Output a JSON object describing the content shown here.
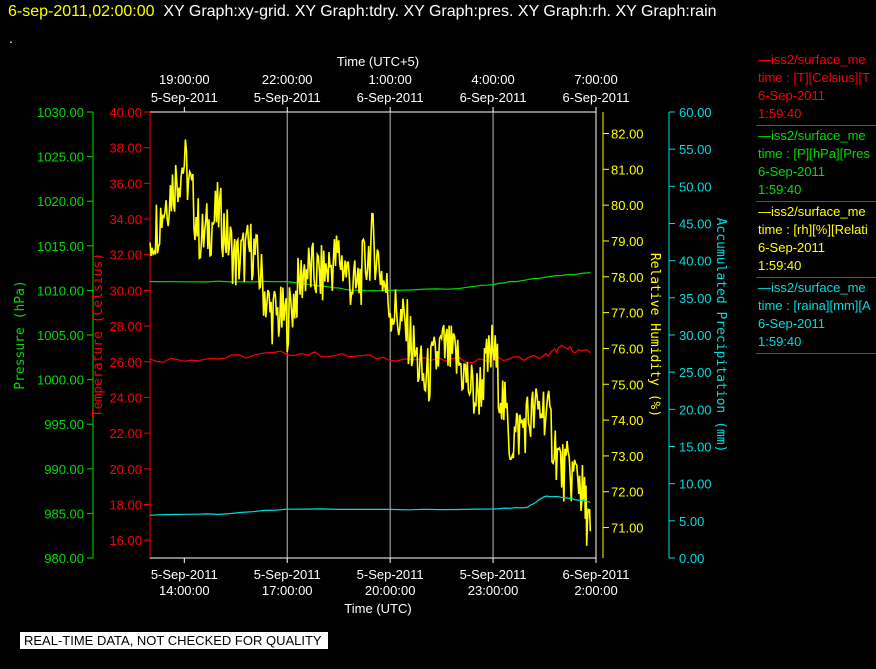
{
  "header": {
    "timestamp": "6-sep-2011,02:00:00",
    "graphs": "XY Graph:xy-grid.  XY Graph:tdry.  XY Graph:pres.  XY Graph:rh.  XY Graph:rain",
    "dot": "."
  },
  "legend": [
    {
      "title": "—iss2/surface_me",
      "line2": "time : [T][Celsius][T",
      "date": "6-Sep-2011",
      "time": "1:59:40",
      "color": "#ff0000"
    },
    {
      "title": "—iss2/surface_me",
      "line2": "time : [P][hPa][Pres",
      "date": "6-Sep-2011",
      "time": "1:59:40",
      "color": "#00dd00"
    },
    {
      "title": "—iss2/surface_me",
      "line2": "time : [rh][%][Relati",
      "date": "6-Sep-2011",
      "time": "1:59:40",
      "color": "#ffff00"
    },
    {
      "title": "—iss2/surface_me",
      "line2": "time : [raina][mm][A",
      "date": "6-Sep-2011",
      "time": "1:59:40",
      "color": "#00dddd"
    }
  ],
  "note": "REAL-TIME DATA, NOT CHECKED FOR QUALITY",
  "chart_data": {
    "type": "line",
    "x_top_label": "Time (UTC+5)",
    "x_bottom_label": "Time (UTC)",
    "x_range_hours_utc": [
      "5-Sep-2011 13:00:00",
      "6-Sep-2011 02:00:00"
    ],
    "top_ticks": [
      {
        "time": "19:00:00",
        "date": "5-Sep-2011"
      },
      {
        "time": "22:00:00",
        "date": "5-Sep-2011"
      },
      {
        "time": "1:00:00",
        "date": "6-Sep-2011"
      },
      {
        "time": "4:00:00",
        "date": "6-Sep-2011"
      },
      {
        "time": "7:00:00",
        "date": "6-Sep-2011"
      }
    ],
    "bottom_ticks": [
      {
        "date": "5-Sep-2011",
        "time": "14:00:00"
      },
      {
        "date": "5-Sep-2011",
        "time": "17:00:00"
      },
      {
        "date": "5-Sep-2011",
        "time": "20:00:00"
      },
      {
        "date": "5-Sep-2011",
        "time": "23:00:00"
      },
      {
        "date": "6-Sep-2011",
        "time": "2:00:00"
      }
    ],
    "grid": "vertical",
    "axes": {
      "pressure": {
        "label": "Pressure (hPa)",
        "range": [
          980,
          1030
        ],
        "ticks": [
          "980.00",
          "985.00",
          "990.00",
          "995.00",
          "1000.00",
          "1005.00",
          "1010.00",
          "1015.00",
          "1020.00",
          "1025.00",
          "1030.00"
        ],
        "color": "#00dd00"
      },
      "temperature": {
        "label": "Temperature (Celsius)",
        "range": [
          15,
          40
        ],
        "ticks": [
          "16.00",
          "18.00",
          "20.00",
          "22.00",
          "24.00",
          "26.00",
          "28.00",
          "30.00",
          "32.00",
          "34.00",
          "36.00",
          "38.00",
          "40.00"
        ],
        "color": "#ff0000"
      },
      "humidity": {
        "label": "Relative Humidity (%)",
        "range": [
          70.15,
          82.6
        ],
        "ticks": [
          "71.00",
          "72.00",
          "73.00",
          "74.00",
          "75.00",
          "76.00",
          "77.00",
          "78.00",
          "79.00",
          "80.00",
          "81.00",
          "82.00"
        ],
        "color": "#ffff00"
      },
      "precip": {
        "label": "Accumulated Precipitation (mm)",
        "range": [
          0,
          60
        ],
        "ticks": [
          "0.00",
          "5.00",
          "10.00",
          "15.00",
          "20.00",
          "25.00",
          "30.00",
          "35.00",
          "40.00",
          "45.00",
          "50.00",
          "55.00",
          "60.00"
        ],
        "color": "#00dddd"
      }
    },
    "series": [
      {
        "name": "pressure",
        "axis": "pressure",
        "color": "#00dd00",
        "x": [
          "5-Sep-2011 13:00",
          "5-Sep-2011 15:00",
          "5-Sep-2011 17:00",
          "5-Sep-2011 18:00",
          "5-Sep-2011 19:00",
          "5-Sep-2011 20:00",
          "5-Sep-2011 22:00",
          "5-Sep-2011 23:00",
          "6-Sep-2011 00:00",
          "6-Sep-2011 01:00",
          "6-Sep-2011 01:50"
        ],
        "y": [
          1011.0,
          1011.0,
          1011.0,
          1010.5,
          1010.0,
          1010.0,
          1010.2,
          1010.7,
          1011.2,
          1011.7,
          1012.0
        ]
      },
      {
        "name": "temperature",
        "axis": "temperature",
        "color": "#ff0000",
        "x": [
          "5-Sep-2011 13:00",
          "5-Sep-2011 15:00",
          "5-Sep-2011 17:00",
          "5-Sep-2011 19:00",
          "5-Sep-2011 21:00",
          "5-Sep-2011 23:00",
          "6-Sep-2011 00:30",
          "6-Sep-2011 01:00",
          "6-Sep-2011 01:50"
        ],
        "y": [
          26.1,
          26.2,
          26.5,
          26.3,
          26.1,
          26.1,
          26.3,
          26.8,
          26.5
        ]
      },
      {
        "name": "humidity",
        "axis": "humidity",
        "color": "#ffff00",
        "x": [
          "5-Sep-2011 13:00",
          "5-Sep-2011 13:30",
          "5-Sep-2011 14:00",
          "5-Sep-2011 14:30",
          "5-Sep-2011 15:00",
          "5-Sep-2011 15:30",
          "5-Sep-2011 16:00",
          "5-Sep-2011 16:30",
          "5-Sep-2011 17:00",
          "5-Sep-2011 17:30",
          "5-Sep-2011 18:00",
          "5-Sep-2011 18:30",
          "5-Sep-2011 19:00",
          "5-Sep-2011 19:30",
          "5-Sep-2011 20:00",
          "5-Sep-2011 20:30",
          "5-Sep-2011 21:00",
          "5-Sep-2011 21:30",
          "5-Sep-2011 22:00",
          "5-Sep-2011 22:30",
          "5-Sep-2011 23:00",
          "5-Sep-2011 23:30",
          "6-Sep-2011 00:00",
          "6-Sep-2011 00:30",
          "6-Sep-2011 01:00",
          "6-Sep-2011 01:30",
          "6-Sep-2011 01:50"
        ],
        "y": [
          79.0,
          80.2,
          81.2,
          79.0,
          79.8,
          78.4,
          78.8,
          77.0,
          76.8,
          78.2,
          78.0,
          78.6,
          77.6,
          79.0,
          77.2,
          76.5,
          75.0,
          76.0,
          75.6,
          74.6,
          76.0,
          73.4,
          74.0,
          74.4,
          72.6,
          72.4,
          70.9
        ]
      },
      {
        "name": "precipitation",
        "axis": "precip",
        "color": "#00dddd",
        "x": [
          "5-Sep-2011 13:00",
          "5-Sep-2011 15:00",
          "5-Sep-2011 17:00",
          "5-Sep-2011 20:00",
          "5-Sep-2011 23:00",
          "6-Sep-2011 00:00",
          "6-Sep-2011 00:30",
          "6-Sep-2011 01:00",
          "6-Sep-2011 01:50"
        ],
        "y": [
          5.8,
          5.9,
          6.6,
          6.5,
          6.6,
          6.8,
          8.3,
          8.2,
          7.5
        ]
      }
    ]
  }
}
